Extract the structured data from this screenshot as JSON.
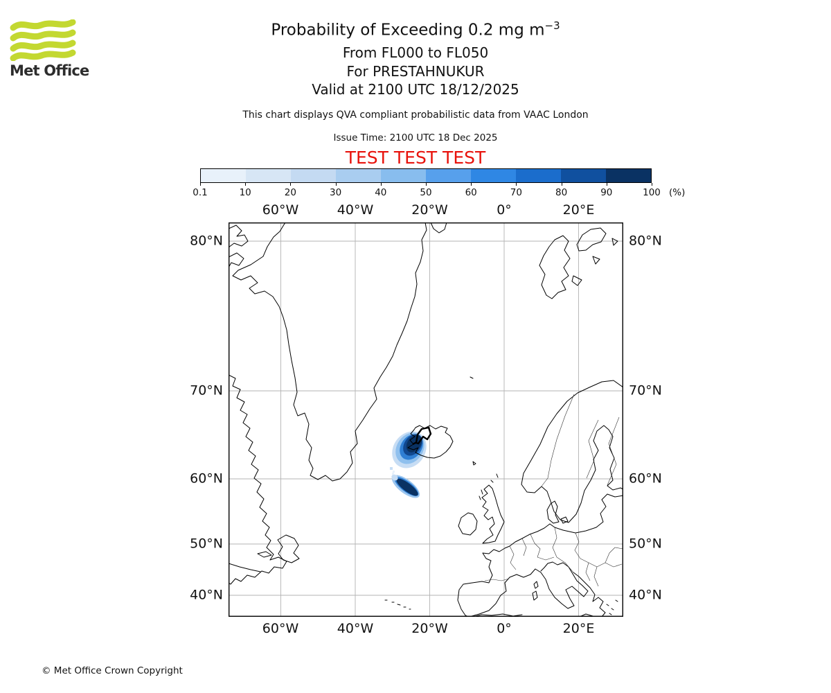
{
  "logo": {
    "brand": "Met Office"
  },
  "header": {
    "title_main": "Probability of Exceeding 0.2 mg m",
    "title_sup": "−3",
    "subtitle_flight_levels": "From FL000 to FL050",
    "subtitle_volcano": "For PRESTAHNUKUR",
    "subtitle_valid": "Valid at 2100 UTC 18/12/2025",
    "disclaimer": "This chart displays QVA compliant probabilistic data from VAAC London",
    "issue_time": "Issue Time: 2100 UTC 18 Dec 2025",
    "test_banner": "TEST TEST TEST"
  },
  "colorbar": {
    "unit_label": "(%)",
    "tick_labels": [
      "0.1",
      "10",
      "20",
      "30",
      "40",
      "50",
      "60",
      "70",
      "80",
      "90",
      "100"
    ],
    "colors": [
      "#e8f1fa",
      "#d7e6f5",
      "#c4daf2",
      "#a9cdf0",
      "#88bdee",
      "#57a0ec",
      "#2f87e4",
      "#1b6dcc",
      "#10509f",
      "#0a3263"
    ]
  },
  "map": {
    "lon_labels": [
      "60°W",
      "40°W",
      "20°W",
      "0°",
      "20°E"
    ],
    "lat_labels": [
      "80°N",
      "70°N",
      "60°N",
      "50°N",
      "40°N"
    ]
  },
  "footer": {
    "copyright": "© Met Office Crown Copyright"
  },
  "chart_data": {
    "type": "heatmap",
    "title": "Probability of Exceeding 0.2 mg m⁻³",
    "subtitle": [
      "From FL000 to FL050",
      "For PRESTAHNUKUR",
      "Valid at 2100 UTC 18/12/2025"
    ],
    "issue_time": "Issue Time: 2100 UTC 18 Dec 2025",
    "legend": {
      "label": "(%)",
      "levels": [
        0.1,
        10,
        20,
        30,
        40,
        50,
        60,
        70,
        80,
        90,
        100
      ],
      "colors": [
        "#e8f1fa",
        "#d7e6f5",
        "#c4daf2",
        "#a9cdf0",
        "#88bdee",
        "#57a0ec",
        "#2f87e4",
        "#1b6dcc",
        "#10509f",
        "#0a3263"
      ],
      "position": "top, horizontal"
    },
    "x_axis": {
      "label": "longitude",
      "ticks": [
        "60°W",
        "40°W",
        "20°W",
        "0°",
        "20°E"
      ],
      "sides": [
        "top",
        "bottom"
      ]
    },
    "y_axis": {
      "label": "latitude",
      "ticks": [
        "80°N",
        "70°N",
        "60°N",
        "50°N",
        "40°N"
      ],
      "sides": [
        "left",
        "right"
      ]
    },
    "grid": true,
    "projection": "Mercator-style North Atlantic / Europe domain",
    "features": [
      {
        "name": "primary-plume",
        "description": "Teardrop-shaped ash probability plume extending SW from Prestahnukur, Iceland; core 90-100% (dark navy), fringes 10-40% (light blue)",
        "approx_location": "about 20-26°W, 61-64.5°N"
      },
      {
        "name": "secondary-plume",
        "description": "Detached elongated NW-SE streak of 90-100% probability SW of Iceland with light fringe",
        "approx_location": "about 22-27°W, 58-60°N"
      },
      {
        "name": "volcano-source-marker",
        "description": "Thick black polygon outline marking the Prestahnukur source area in western Iceland"
      }
    ]
  }
}
